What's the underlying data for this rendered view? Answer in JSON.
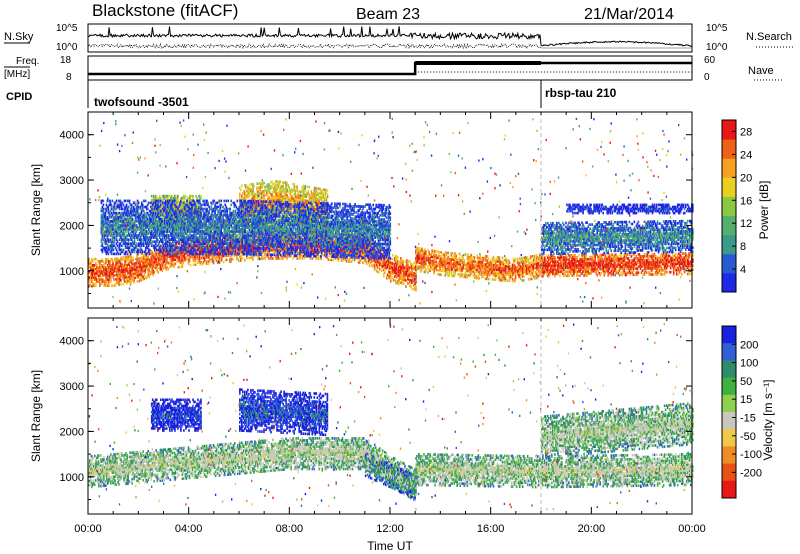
{
  "header": {
    "station": "Blackstone (fitACF)",
    "beam": "Beam 23",
    "date": "21/Mar/2014"
  },
  "top_panel": {
    "left_label": "N.Sky",
    "right_label": "N.Search",
    "left_ticks": [
      "10^5",
      "10^0"
    ],
    "right_ticks": [
      "10^5",
      "10^0"
    ]
  },
  "freq_panel": {
    "label_line1": "Freq.",
    "label_line2": "[MHz]",
    "left_ticks": [
      "18",
      "8"
    ],
    "right_label": "Nave",
    "right_ticks": [
      "60",
      "0"
    ]
  },
  "cpid_panel": {
    "label": "CPID",
    "segments": [
      {
        "name": "twofsound -3501",
        "start_hour": 0,
        "end_hour": 18
      },
      {
        "name": "rbsp-tau 210",
        "start_hour": 18,
        "end_hour": 24
      }
    ]
  },
  "colors": {
    "power": [
      "#1e28e6",
      "#2a5ad2",
      "#3c9a8a",
      "#55b070",
      "#8cc840",
      "#e8d020",
      "#f8a020",
      "#f06018",
      "#e81818"
    ],
    "velocity": [
      "#1a20e0",
      "#3060d8",
      "#2e8c6c",
      "#40b040",
      "#90d050",
      "#c8c8be",
      "#f0c848",
      "#f08c28",
      "#e85018",
      "#e81818"
    ]
  },
  "chart_data": [
    {
      "type": "heatmap",
      "title": "Power",
      "ylabel": "Slant Range [km]",
      "xlabel": "Time UT",
      "x_unit": "hours UT",
      "xlim": [
        0,
        24
      ],
      "ylim": [
        180,
        4500
      ],
      "y_ticks": [
        1000,
        2000,
        3000,
        4000
      ],
      "x_tick_labels": [
        "00:00",
        "04:00",
        "08:00",
        "12:00",
        "16:00",
        "20:00",
        "00:00"
      ],
      "colorbar": {
        "label": "Power [dB]",
        "ticks": [
          "4",
          "8",
          "12",
          "16",
          "20",
          "24",
          "28"
        ],
        "range": [
          0,
          30
        ]
      },
      "bands": [
        {
          "t_start": 0,
          "t_end": 13,
          "range_profile_km": [
            [
              0,
              1000
            ],
            [
              1,
              1000
            ],
            [
              2,
              1100
            ],
            [
              3,
              1350
            ],
            [
              4,
              1450
            ],
            [
              5,
              1500
            ],
            [
              6,
              1550
            ],
            [
              7,
              1600
            ],
            [
              8,
              1600
            ],
            [
              9,
              1600
            ],
            [
              10,
              1550
            ],
            [
              11,
              1500
            ],
            [
              12,
              1100
            ],
            [
              13,
              900
            ]
          ],
          "width_km": 300,
          "level": 0.9
        },
        {
          "t_start": 13,
          "t_end": 18,
          "range_profile_km": [
            [
              13,
              1300
            ],
            [
              14,
              1200
            ],
            [
              15,
              1150
            ],
            [
              16,
              1100
            ],
            [
              17,
              1050
            ],
            [
              18,
              1150
            ]
          ],
          "width_km": 260,
          "level": 0.85
        },
        {
          "t_start": 18,
          "t_end": 24,
          "range_profile_km": [
            [
              18,
              1150
            ],
            [
              24,
              1200
            ]
          ],
          "width_km": 240,
          "level": 0.95
        },
        {
          "t_start": 2.5,
          "t_end": 4.5,
          "range_profile_km": [
            [
              2.5,
              2350
            ],
            [
              4.5,
              2350
            ]
          ],
          "width_km": 350,
          "level": 0.65
        },
        {
          "t_start": 6,
          "t_end": 9.5,
          "range_profile_km": [
            [
              6,
              2450
            ],
            [
              7.5,
              2550
            ],
            [
              9.5,
              2350
            ]
          ],
          "width_km": 450,
          "level": 0.75
        },
        {
          "t_start": 0.5,
          "t_end": 12,
          "range_profile_km": [
            [
              0.5,
              2000
            ],
            [
              6,
              2000
            ],
            [
              12,
              1900
            ]
          ],
          "width_km": 600,
          "level": 0.25
        },
        {
          "t_start": 18,
          "t_end": 24,
          "range_profile_km": [
            [
              18,
              1750
            ],
            [
              24,
              1800
            ]
          ],
          "width_km": 350,
          "level": 0.3
        },
        {
          "t_start": 19,
          "t_end": 24,
          "range_profile_km": [
            [
              19,
              2400
            ],
            [
              24,
              2400
            ]
          ],
          "width_km": 100,
          "level": 0.1
        }
      ]
    },
    {
      "type": "heatmap",
      "title": "Velocity",
      "ylabel": "Slant Range [km]",
      "xlabel": "Time UT",
      "x_unit": "hours UT",
      "xlim": [
        0,
        24
      ],
      "ylim": [
        180,
        4500
      ],
      "y_ticks": [
        1000,
        2000,
        3000,
        4000
      ],
      "x_tick_labels": [
        "00:00",
        "04:00",
        "08:00",
        "12:00",
        "16:00",
        "20:00",
        "00:00"
      ],
      "colorbar": {
        "label": "Velocity [m s⁻¹]",
        "ticks": [
          "200",
          "100",
          "50",
          "15",
          "-15",
          "-50",
          "-100",
          "-200"
        ],
        "range": [
          -250,
          250
        ]
      },
      "bands": [
        {
          "t_start": 0,
          "t_end": 13,
          "range_profile_km": [
            [
              0,
              1150
            ],
            [
              2,
              1250
            ],
            [
              4,
              1350
            ],
            [
              8,
              1550
            ],
            [
              11,
              1550
            ],
            [
              12,
              1150
            ],
            [
              13,
              850
            ]
          ],
          "width_km": 350,
          "level": 0.5
        },
        {
          "t_start": 13,
          "t_end": 24,
          "range_profile_km": [
            [
              13,
              1200
            ],
            [
              18,
              1150
            ],
            [
              24,
              1200
            ]
          ],
          "width_km": 350,
          "level": 0.5
        },
        {
          "t_start": 2.5,
          "t_end": 4.5,
          "range_profile_km": [
            [
              2.5,
              2400
            ],
            [
              4.5,
              2400
            ]
          ],
          "width_km": 350,
          "level": 0.1
        },
        {
          "t_start": 6,
          "t_end": 9.5,
          "range_profile_km": [
            [
              6,
              2500
            ],
            [
              9.5,
              2400
            ]
          ],
          "width_km": 450,
          "level": 0.15
        },
        {
          "t_start": 11,
          "t_end": 13,
          "range_profile_km": [
            [
              11,
              1300
            ],
            [
              13,
              800
            ]
          ],
          "width_km": 250,
          "level": 0.35
        },
        {
          "t_start": 18,
          "t_end": 24,
          "range_profile_km": [
            [
              18,
              1900
            ],
            [
              24,
              2200
            ]
          ],
          "width_km": 450,
          "level": 0.48
        }
      ]
    }
  ]
}
